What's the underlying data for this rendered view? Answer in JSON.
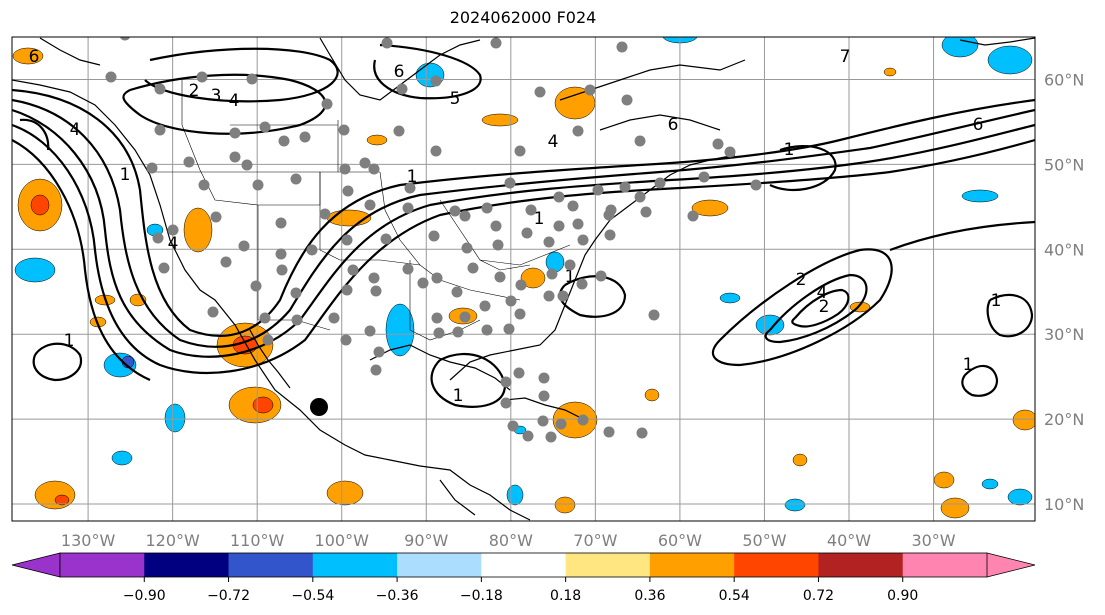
{
  "title": "2024062000 F024",
  "map": {
    "lon_range": [
      -139,
      -18
    ],
    "lat_range": [
      8,
      65
    ],
    "longitude_labels": [
      "130°W",
      "120°W",
      "110°W",
      "100°W",
      "90°W",
      "80°W",
      "70°W",
      "60°W",
      "50°W",
      "40°W",
      "30°W"
    ],
    "latitude_labels": [
      "60°N",
      "50°N",
      "40°N",
      "30°N",
      "20°N",
      "10°N"
    ],
    "contour_labels": [
      "6",
      "2",
      "3",
      "4",
      "6",
      "5",
      "4",
      "1",
      "1",
      "1",
      "4",
      "4",
      "1",
      "6",
      "7",
      "6",
      "1",
      "2",
      "4",
      "2",
      "1",
      "1",
      "1",
      "1"
    ],
    "gridlines": true,
    "coastline_color": "#000000",
    "contour_color": "#000000",
    "station_color": "#7f7f7f",
    "highlight_point_color": "#000000"
  },
  "colorbar": {
    "labels": [
      "−0.90",
      "−0.72",
      "−0.54",
      "−0.36",
      "−0.18",
      "0.18",
      "0.36",
      "0.54",
      "0.72",
      "0.90"
    ],
    "colors": [
      "#9933cc",
      "#000080",
      "#3355cc",
      "#00bfff",
      "#aaddff",
      "#ffffff",
      "#ffe680",
      "#ffa000",
      "#ff4500",
      "#b22222",
      "#ff85b0"
    ],
    "extend": "both"
  }
}
